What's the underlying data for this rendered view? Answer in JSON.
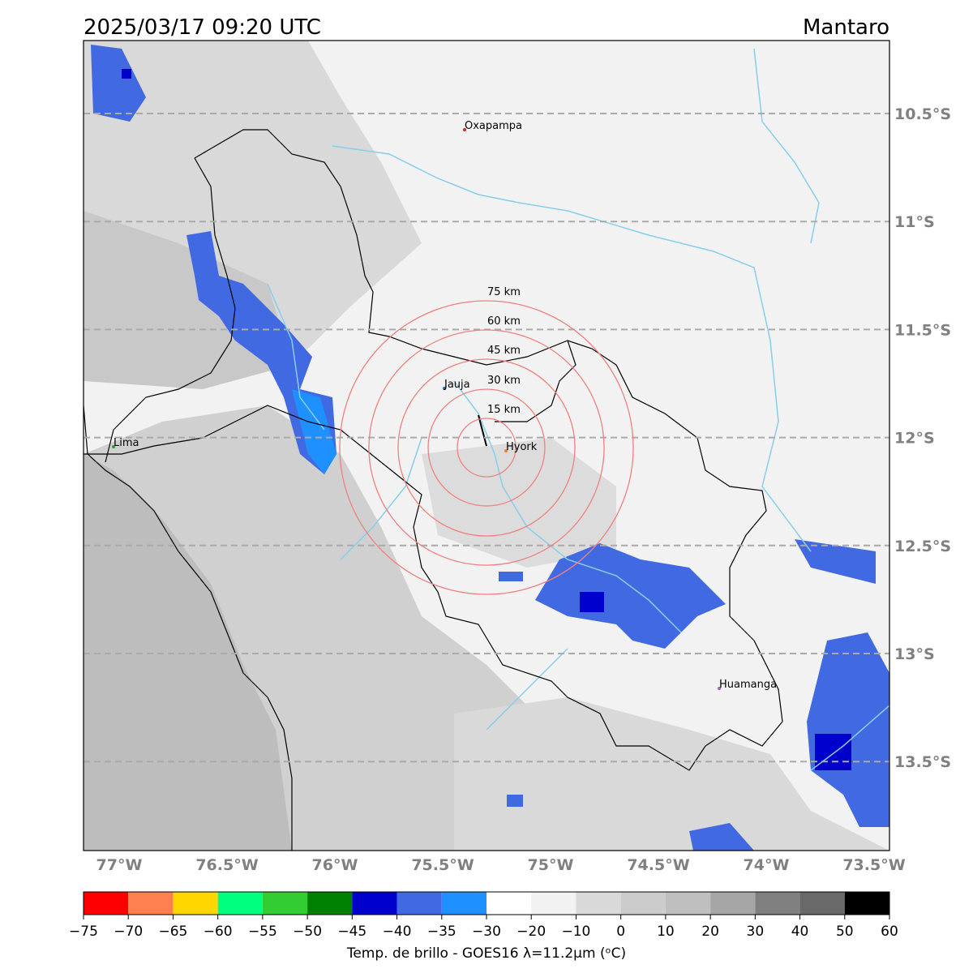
{
  "header": {
    "title": "2025/03/17 09:20 UTC",
    "region": "Mantaro"
  },
  "map": {
    "lat_labels": [
      "10.5°S",
      "11°S",
      "11.5°S",
      "12°S",
      "12.5°S",
      "13°S",
      "13.5°S"
    ],
    "lon_labels": [
      "77°W",
      "76.5°W",
      "76°W",
      "75.5°W",
      "75°W",
      "74.5°W",
      "74°W",
      "73.5°W"
    ],
    "places": [
      "Oxapampa",
      "Jauja",
      "Lima",
      "Hyork",
      "Huamanga"
    ],
    "rings": [
      "75 km",
      "60 km",
      "45 km",
      "30 km",
      "15 km"
    ]
  },
  "colorbar": {
    "ticks": [
      "−75",
      "−70",
      "−65",
      "−60",
      "−55",
      "−50",
      "−45",
      "−40",
      "−35",
      "−30",
      "−20",
      "−10",
      "0",
      "10",
      "20",
      "30",
      "40",
      "50",
      "60"
    ],
    "colors": [
      "#ff0000",
      "#ff7f50",
      "#ffd700",
      "#00ff7f",
      "#32cd32",
      "#008000",
      "#0000cd",
      "#4169e1",
      "#1e90ff",
      "#ffffff",
      "#f2f2f2",
      "#d9d9d9",
      "#cccccc",
      "#bfbfbf",
      "#a6a6a6",
      "#808080",
      "#696969",
      "#000000"
    ],
    "label": "Temp. de brillo - GOES16 λ=11.2μm (ᵒC)"
  }
}
